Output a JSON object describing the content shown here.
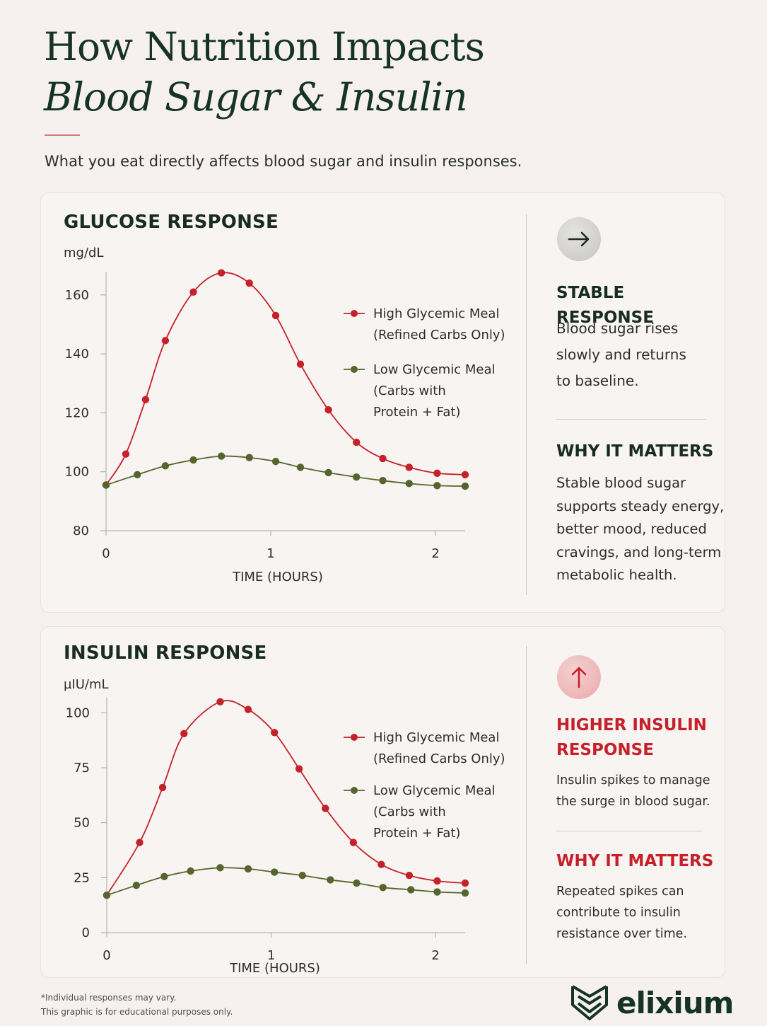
{
  "header": {
    "title_line1": "How Nutrition Impacts",
    "title_line2": "Blood Sugar & Insulin",
    "subtitle": "What you eat directly affects blood sugar and insulin responses."
  },
  "colors": {
    "high": "#c5212b",
    "low": "#55662d",
    "heading": "#163327",
    "accent_red": "#c6202a"
  },
  "glucose_panel": {
    "title": "GLUCOSE RESPONSE",
    "unit": "mg/dL",
    "icon": "arrow-right-icon",
    "side": {
      "heading1": "STABLE RESPONSE",
      "text1": [
        "Blood sugar rises",
        "slowly and returns",
        "to baseline."
      ],
      "heading2": "WHY IT MATTERS",
      "text2": [
        "Stable blood sugar",
        "supports steady energy,",
        "better mood, reduced",
        "cravings, and long-term",
        "metabolic health."
      ]
    }
  },
  "insulin_panel": {
    "title": "INSULIN RESPONSE",
    "unit": "µIU/mL",
    "icon": "arrow-up-icon",
    "side": {
      "heading1": [
        "HIGHER INSULIN",
        "RESPONSE"
      ],
      "text1": [
        "Insulin spikes to manage",
        "the surge in blood sugar."
      ],
      "heading2": "WHY IT MATTERS",
      "text2": [
        "Repeated spikes can",
        "contribute to insulin",
        "resistance over time."
      ]
    }
  },
  "chart_data": [
    {
      "type": "line",
      "title": "GLUCOSE RESPONSE",
      "xlabel": "TIME (HOURS)",
      "ylabel": "mg/dL",
      "xlim": [
        0,
        2.18
      ],
      "ylim": [
        80,
        165
      ],
      "xticks": [
        0,
        1,
        2
      ],
      "yticks": [
        80,
        100,
        120,
        140,
        160
      ],
      "legend_position": "top-right",
      "series": [
        {
          "name": [
            "High Glycemic Meal",
            "(Refined Carbs Only)"
          ],
          "color": "#c5212b",
          "x": [
            0,
            0.12,
            0.24,
            0.36,
            0.53,
            0.7,
            0.87,
            1.03,
            1.18,
            1.35,
            1.52,
            1.68,
            1.84,
            2.01,
            2.18
          ],
          "y": [
            95.5,
            106,
            124.5,
            144.5,
            161,
            167.5,
            164,
            153,
            136.5,
            121,
            110,
            104.5,
            101.5,
            99.5,
            99
          ]
        },
        {
          "name": [
            "Low Glycemic Meal",
            "(Carbs with",
            "Protein + Fat)"
          ],
          "color": "#55662d",
          "x": [
            0,
            0.19,
            0.36,
            0.53,
            0.7,
            0.87,
            1.03,
            1.18,
            1.35,
            1.52,
            1.68,
            1.84,
            2.01,
            2.18
          ],
          "y": [
            95.5,
            99,
            102,
            104,
            105.3,
            104.8,
            103.5,
            101.5,
            99.7,
            98.2,
            97,
            96,
            95.3,
            95.1
          ]
        }
      ]
    },
    {
      "type": "line",
      "title": "INSULIN RESPONSE",
      "xlabel": "TIME (HOURS)",
      "ylabel": "µIU/mL",
      "xlim": [
        0,
        2.18
      ],
      "ylim": [
        0,
        103
      ],
      "xticks": [
        0,
        1,
        2
      ],
      "yticks": [
        0,
        25,
        50,
        75,
        100
      ],
      "legend_position": "top-right",
      "series": [
        {
          "name": [
            "High Glycemic Meal",
            "(Refined Carbs Only)"
          ],
          "color": "#c5212b",
          "x": [
            0,
            0.2,
            0.34,
            0.47,
            0.69,
            0.86,
            1.02,
            1.17,
            1.33,
            1.5,
            1.67,
            1.84,
            2.01,
            2.18
          ],
          "y": [
            17,
            41,
            66,
            90.5,
            105,
            101.5,
            91,
            74.5,
            56.5,
            41,
            31,
            26,
            23.5,
            22.5
          ]
        },
        {
          "name": [
            "Low Glycemic Meal",
            "(Carbs with",
            "Protein + Fat)"
          ],
          "color": "#55662d",
          "x": [
            0,
            0.18,
            0.35,
            0.51,
            0.69,
            0.86,
            1.02,
            1.19,
            1.36,
            1.52,
            1.68,
            1.85,
            2.01,
            2.18
          ],
          "y": [
            17,
            21.5,
            25.5,
            28,
            29.5,
            29,
            27.5,
            26,
            24,
            22.5,
            20.5,
            19.5,
            18.5,
            18
          ]
        }
      ]
    }
  ],
  "footer": {
    "note1": "*Individual responses may vary.",
    "note2": "This graphic is for educational purposes only.",
    "brand": "elixium",
    "brand_icon": "elixium-logo-icon"
  }
}
